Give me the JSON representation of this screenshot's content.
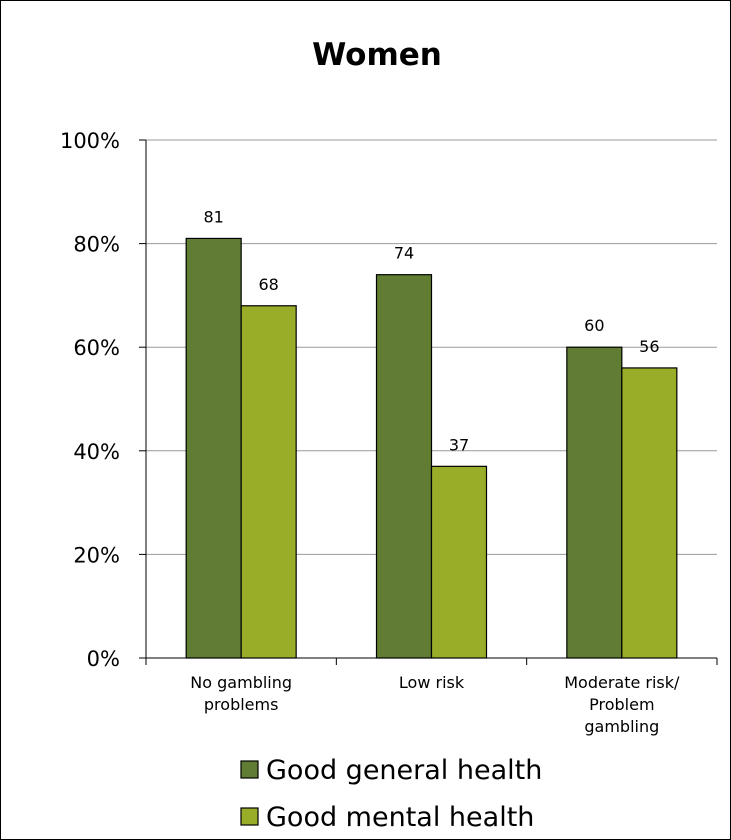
{
  "chart_data": {
    "type": "bar",
    "title": "Women",
    "categories": [
      "No gambling problems",
      "Low risk",
      "Moderate risk/ Problem gambling"
    ],
    "category_lines": [
      [
        "No gambling",
        "problems"
      ],
      [
        "Low risk"
      ],
      [
        "Moderate risk/",
        "Problem",
        "gambling"
      ]
    ],
    "series": [
      {
        "name": "Good general health",
        "values": [
          81,
          74,
          60
        ],
        "color": "#617d33"
      },
      {
        "name": "Good mental health",
        "values": [
          68,
          37,
          56
        ],
        "color": "#99ad28"
      }
    ],
    "ylim": [
      0,
      100
    ],
    "yticks": [
      0,
      20,
      40,
      60,
      80,
      100
    ],
    "ytick_labels": [
      "0%",
      "20%",
      "40%",
      "60%",
      "80%",
      "100%"
    ],
    "xlabel": "",
    "ylabel": "",
    "grid": true,
    "legend_position": "bottom"
  }
}
